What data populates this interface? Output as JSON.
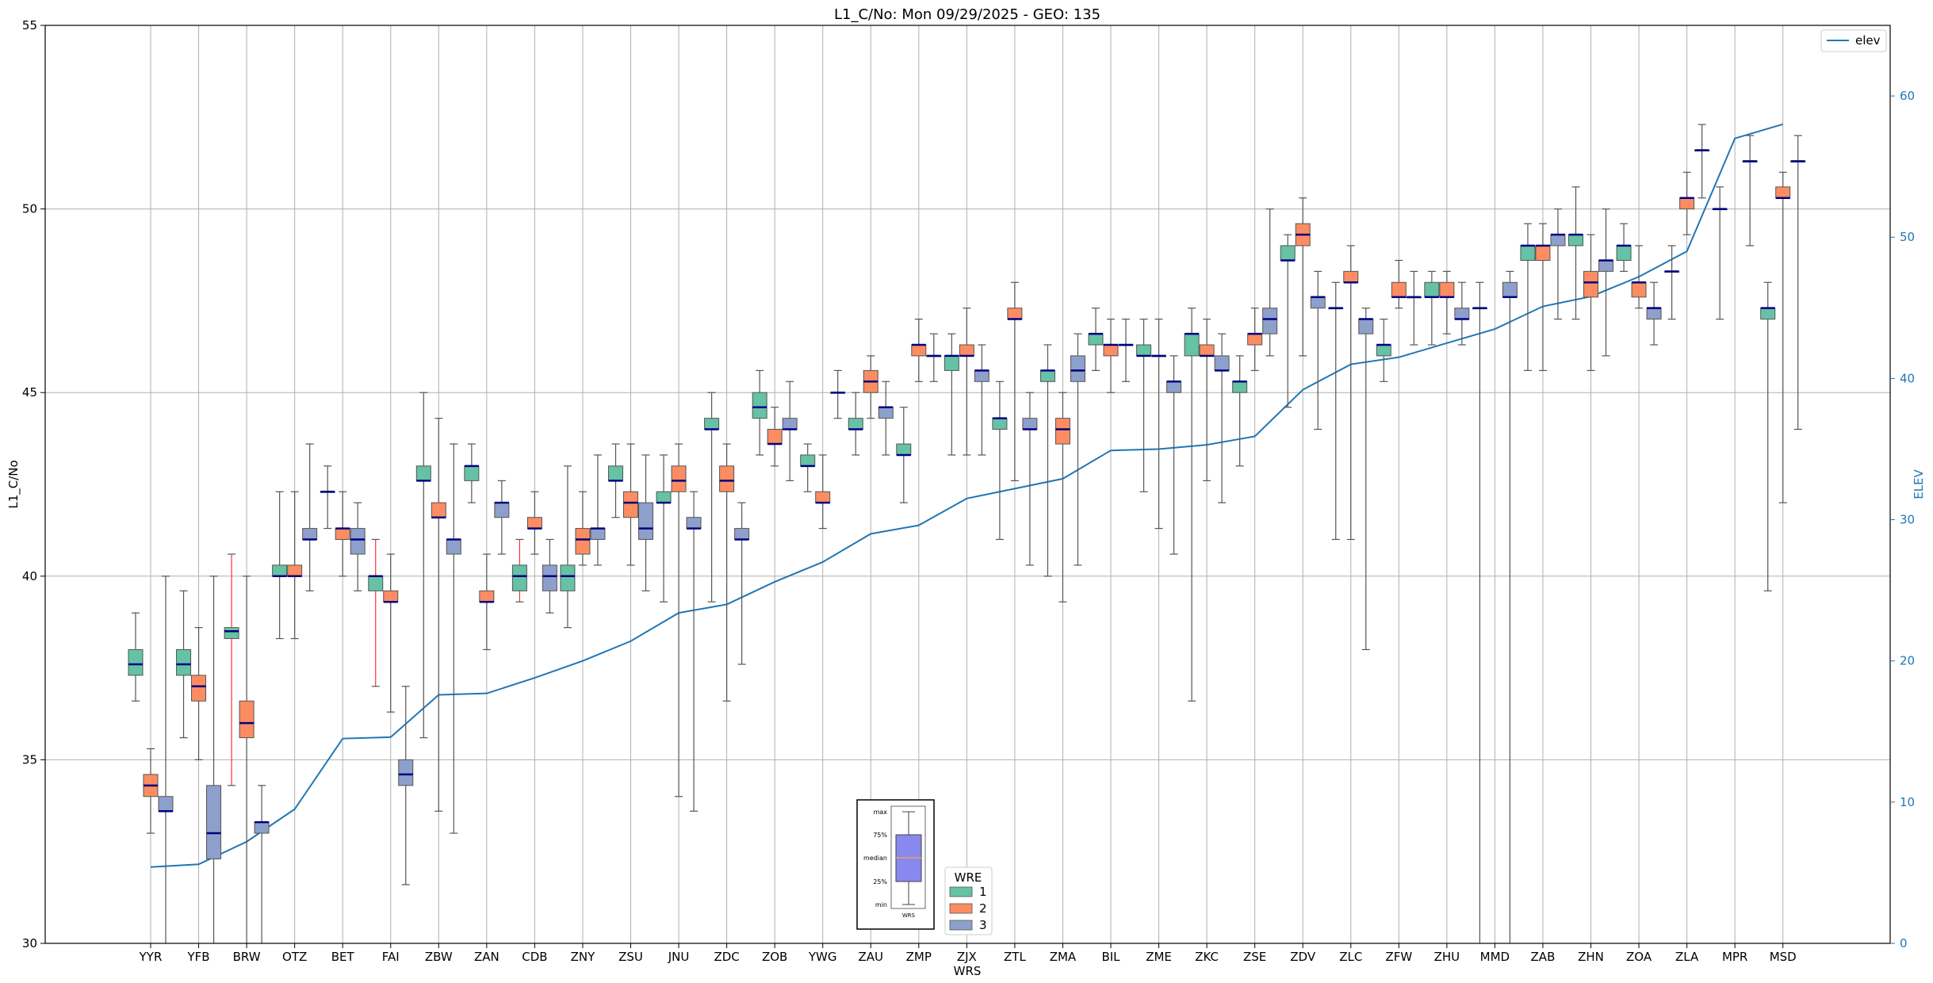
{
  "chart_data": {
    "type": "box",
    "title": "L1_C/No: Mon 09/29/2025 - GEO: 135",
    "xlabel": "WRS",
    "ylabel": "L1_C/No",
    "ylabel_right": "ELEV",
    "ylim": [
      30,
      55
    ],
    "ylim_right": [
      0,
      65
    ],
    "yticks": [
      30,
      35,
      40,
      45,
      50,
      55
    ],
    "yticks_right": [
      0,
      10,
      20,
      30,
      40,
      50,
      60
    ],
    "grid": true,
    "categories": [
      "YYR",
      "YFB",
      "BRW",
      "OTZ",
      "BET",
      "FAI",
      "ZBW",
      "ZAN",
      "CDB",
      "ZNY",
      "ZSU",
      "JNU",
      "ZDC",
      "ZOB",
      "YWG",
      "ZAU",
      "ZMP",
      "ZJX",
      "ZTL",
      "ZMA",
      "BIL",
      "ZME",
      "ZKC",
      "ZSE",
      "ZDV",
      "ZLC",
      "ZFW",
      "ZHU",
      "MMD",
      "ZAB",
      "ZHN",
      "ZOA",
      "ZLA",
      "MPR",
      "MSD"
    ],
    "wre_legend": {
      "title": "WRE",
      "entries": [
        "1",
        "2",
        "3"
      ],
      "colors": [
        "#66c2a5",
        "#fc8d62",
        "#8da0cb"
      ],
      "placement": "bottom-center"
    },
    "series_legend": {
      "entries": [
        "elev"
      ],
      "placement": "top-right"
    },
    "legend_example": {
      "labels": [
        "max",
        "75%",
        "median",
        "25%",
        "min"
      ],
      "xlabel": "WRS"
    },
    "boxes": [
      {
        "station": "YYR",
        "wre": 1,
        "min": 36.6,
        "q1": 37.3,
        "median": 37.6,
        "q3": 38.0,
        "max": 39.0
      },
      {
        "station": "YYR",
        "wre": 2,
        "min": 33.0,
        "q1": 34.0,
        "median": 34.3,
        "q3": 34.6,
        "max": 35.3
      },
      {
        "station": "YYR",
        "wre": 3,
        "min": 30.0,
        "q1": 33.6,
        "median": 33.6,
        "q3": 34.0,
        "max": 40.0
      },
      {
        "station": "YFB",
        "wre": 1,
        "min": 35.6,
        "q1": 37.3,
        "median": 37.6,
        "q3": 38.0,
        "max": 39.6
      },
      {
        "station": "YFB",
        "wre": 2,
        "min": 35.0,
        "q1": 36.6,
        "median": 37.0,
        "q3": 37.3,
        "max": 38.6
      },
      {
        "station": "YFB",
        "wre": 3,
        "min": 30.0,
        "q1": 32.3,
        "median": 33.0,
        "q3": 34.3,
        "max": 40.0
      },
      {
        "station": "BRW",
        "wre": 1,
        "min": 34.3,
        "q1": 38.3,
        "median": 38.5,
        "q3": 38.6,
        "max": 40.6,
        "highlight": true
      },
      {
        "station": "BRW",
        "wre": 2,
        "min": 30.0,
        "q1": 35.6,
        "median": 36.0,
        "q3": 36.6,
        "max": 40.0
      },
      {
        "station": "BRW",
        "wre": 3,
        "min": 30.0,
        "q1": 33.0,
        "median": 33.3,
        "q3": 33.3,
        "max": 34.3
      },
      {
        "station": "OTZ",
        "wre": 1,
        "min": 38.3,
        "q1": 40.0,
        "median": 40.0,
        "q3": 40.3,
        "max": 42.3
      },
      {
        "station": "OTZ",
        "wre": 2,
        "min": 38.3,
        "q1": 40.0,
        "median": 40.0,
        "q3": 40.3,
        "max": 42.3
      },
      {
        "station": "OTZ",
        "wre": 3,
        "min": 39.6,
        "q1": 41.0,
        "median": 41.0,
        "q3": 41.3,
        "max": 43.6
      },
      {
        "station": "BET",
        "wre": 1,
        "min": 41.3,
        "q1": 42.3,
        "median": 42.3,
        "q3": 42.3,
        "max": 43.0
      },
      {
        "station": "BET",
        "wre": 2,
        "min": 40.0,
        "q1": 41.0,
        "median": 41.3,
        "q3": 41.3,
        "max": 42.3
      },
      {
        "station": "BET",
        "wre": 3,
        "min": 39.6,
        "q1": 40.6,
        "median": 41.0,
        "q3": 41.3,
        "max": 42.0
      },
      {
        "station": "FAI",
        "wre": 1,
        "min": 37.0,
        "q1": 39.6,
        "median": 40.0,
        "q3": 40.0,
        "max": 41.0,
        "highlight": true
      },
      {
        "station": "FAI",
        "wre": 2,
        "min": 36.3,
        "q1": 39.3,
        "median": 39.3,
        "q3": 39.6,
        "max": 40.6
      },
      {
        "station": "FAI",
        "wre": 3,
        "min": 31.6,
        "q1": 34.3,
        "median": 34.6,
        "q3": 35.0,
        "max": 37.0
      },
      {
        "station": "ZBW",
        "wre": 1,
        "min": 35.6,
        "q1": 42.6,
        "median": 42.6,
        "q3": 43.0,
        "max": 45.0
      },
      {
        "station": "ZBW",
        "wre": 2,
        "min": 33.6,
        "q1": 41.6,
        "median": 41.6,
        "q3": 42.0,
        "max": 44.3
      },
      {
        "station": "ZBW",
        "wre": 3,
        "min": 33.0,
        "q1": 40.6,
        "median": 41.0,
        "q3": 41.0,
        "max": 43.6
      },
      {
        "station": "ZAN",
        "wre": 1,
        "min": 42.0,
        "q1": 42.6,
        "median": 43.0,
        "q3": 43.0,
        "max": 43.6
      },
      {
        "station": "ZAN",
        "wre": 2,
        "min": 38.0,
        "q1": 39.3,
        "median": 39.3,
        "q3": 39.6,
        "max": 40.6
      },
      {
        "station": "ZAN",
        "wre": 3,
        "min": 40.6,
        "q1": 41.6,
        "median": 42.0,
        "q3": 42.0,
        "max": 42.6
      },
      {
        "station": "CDB",
        "wre": 1,
        "min": 39.3,
        "q1": 39.6,
        "median": 40.0,
        "q3": 40.3,
        "max": 41.0,
        "highlight": true
      },
      {
        "station": "CDB",
        "wre": 2,
        "min": 40.6,
        "q1": 41.3,
        "median": 41.3,
        "q3": 41.6,
        "max": 42.3
      },
      {
        "station": "CDB",
        "wre": 3,
        "min": 39.0,
        "q1": 39.6,
        "median": 40.0,
        "q3": 40.3,
        "max": 41.0
      },
      {
        "station": "ZNY",
        "wre": 1,
        "min": 38.6,
        "q1": 39.6,
        "median": 40.0,
        "q3": 40.3,
        "max": 43.0
      },
      {
        "station": "ZNY",
        "wre": 2,
        "min": 40.3,
        "q1": 40.6,
        "median": 41.0,
        "q3": 41.3,
        "max": 42.3
      },
      {
        "station": "ZNY",
        "wre": 3,
        "min": 40.3,
        "q1": 41.0,
        "median": 41.3,
        "q3": 41.3,
        "max": 43.3
      },
      {
        "station": "ZSU",
        "wre": 1,
        "min": 41.6,
        "q1": 42.6,
        "median": 42.6,
        "q3": 43.0,
        "max": 43.6
      },
      {
        "station": "ZSU",
        "wre": 2,
        "min": 40.3,
        "q1": 41.6,
        "median": 42.0,
        "q3": 42.3,
        "max": 43.6
      },
      {
        "station": "ZSU",
        "wre": 3,
        "min": 39.6,
        "q1": 41.0,
        "median": 41.3,
        "q3": 42.0,
        "max": 43.3
      },
      {
        "station": "JNU",
        "wre": 1,
        "min": 39.3,
        "q1": 42.0,
        "median": 42.0,
        "q3": 42.3,
        "max": 43.3
      },
      {
        "station": "JNU",
        "wre": 2,
        "min": 34.0,
        "q1": 42.3,
        "median": 42.6,
        "q3": 43.0,
        "max": 43.6
      },
      {
        "station": "JNU",
        "wre": 3,
        "min": 33.6,
        "q1": 41.3,
        "median": 41.3,
        "q3": 41.6,
        "max": 42.3
      },
      {
        "station": "ZDC",
        "wre": 1,
        "min": 39.3,
        "q1": 44.0,
        "median": 44.0,
        "q3": 44.3,
        "max": 45.0
      },
      {
        "station": "ZDC",
        "wre": 2,
        "min": 36.6,
        "q1": 42.3,
        "median": 42.6,
        "q3": 43.0,
        "max": 43.6
      },
      {
        "station": "ZDC",
        "wre": 3,
        "min": 37.6,
        "q1": 41.0,
        "median": 41.0,
        "q3": 41.3,
        "max": 42.0
      },
      {
        "station": "ZOB",
        "wre": 1,
        "min": 43.3,
        "q1": 44.3,
        "median": 44.6,
        "q3": 45.0,
        "max": 45.6
      },
      {
        "station": "ZOB",
        "wre": 2,
        "min": 43.0,
        "q1": 43.6,
        "median": 43.6,
        "q3": 44.0,
        "max": 44.6
      },
      {
        "station": "ZOB",
        "wre": 3,
        "min": 42.6,
        "q1": 44.0,
        "median": 44.0,
        "q3": 44.3,
        "max": 45.3
      },
      {
        "station": "YWG",
        "wre": 1,
        "min": 42.3,
        "q1": 43.0,
        "median": 43.0,
        "q3": 43.3,
        "max": 43.6
      },
      {
        "station": "YWG",
        "wre": 2,
        "min": 41.3,
        "q1": 42.0,
        "median": 42.0,
        "q3": 42.3,
        "max": 43.3
      },
      {
        "station": "YWG",
        "wre": 3,
        "min": 44.3,
        "q1": 45.0,
        "median": 45.0,
        "q3": 45.0,
        "max": 45.6
      },
      {
        "station": "ZAU",
        "wre": 1,
        "min": 43.3,
        "q1": 44.0,
        "median": 44.0,
        "q3": 44.3,
        "max": 45.0
      },
      {
        "station": "ZAU",
        "wre": 2,
        "min": 44.3,
        "q1": 45.0,
        "median": 45.3,
        "q3": 45.6,
        "max": 46.0
      },
      {
        "station": "ZAU",
        "wre": 3,
        "min": 43.3,
        "q1": 44.3,
        "median": 44.6,
        "q3": 44.6,
        "max": 45.3
      },
      {
        "station": "ZMP",
        "wre": 1,
        "min": 42.0,
        "q1": 43.3,
        "median": 43.3,
        "q3": 43.6,
        "max": 44.6
      },
      {
        "station": "ZMP",
        "wre": 2,
        "min": 45.3,
        "q1": 46.0,
        "median": 46.3,
        "q3": 46.3,
        "max": 47.0
      },
      {
        "station": "ZMP",
        "wre": 3,
        "min": 45.3,
        "q1": 46.0,
        "median": 46.0,
        "q3": 46.0,
        "max": 46.6
      },
      {
        "station": "ZJX",
        "wre": 1,
        "min": 43.3,
        "q1": 45.6,
        "median": 46.0,
        "q3": 46.0,
        "max": 46.6
      },
      {
        "station": "ZJX",
        "wre": 2,
        "min": 43.3,
        "q1": 46.0,
        "median": 46.0,
        "q3": 46.3,
        "max": 47.3
      },
      {
        "station": "ZJX",
        "wre": 3,
        "min": 43.3,
        "q1": 45.3,
        "median": 45.6,
        "q3": 45.6,
        "max": 46.3
      },
      {
        "station": "ZTL",
        "wre": 1,
        "min": 41.0,
        "q1": 44.0,
        "median": 44.3,
        "q3": 44.3,
        "max": 45.3
      },
      {
        "station": "ZTL",
        "wre": 2,
        "min": 42.6,
        "q1": 47.0,
        "median": 47.0,
        "q3": 47.3,
        "max": 48.0
      },
      {
        "station": "ZTL",
        "wre": 3,
        "min": 40.3,
        "q1": 44.0,
        "median": 44.0,
        "q3": 44.3,
        "max": 45.0
      },
      {
        "station": "ZMA",
        "wre": 1,
        "min": 40.0,
        "q1": 45.3,
        "median": 45.6,
        "q3": 45.6,
        "max": 46.3
      },
      {
        "station": "ZMA",
        "wre": 2,
        "min": 39.3,
        "q1": 43.6,
        "median": 44.0,
        "q3": 44.3,
        "max": 45.0
      },
      {
        "station": "ZMA",
        "wre": 3,
        "min": 40.3,
        "q1": 45.3,
        "median": 45.6,
        "q3": 46.0,
        "max": 46.6
      },
      {
        "station": "BIL",
        "wre": 1,
        "min": 45.6,
        "q1": 46.3,
        "median": 46.6,
        "q3": 46.6,
        "max": 47.3
      },
      {
        "station": "BIL",
        "wre": 2,
        "min": 45.0,
        "q1": 46.0,
        "median": 46.3,
        "q3": 46.3,
        "max": 47.0
      },
      {
        "station": "BIL",
        "wre": 3,
        "min": 45.3,
        "q1": 46.3,
        "median": 46.3,
        "q3": 46.3,
        "max": 47.0
      },
      {
        "station": "ZME",
        "wre": 1,
        "min": 42.3,
        "q1": 46.0,
        "median": 46.0,
        "q3": 46.3,
        "max": 47.0
      },
      {
        "station": "ZME",
        "wre": 2,
        "min": 41.3,
        "q1": 46.0,
        "median": 46.0,
        "q3": 46.0,
        "max": 47.0
      },
      {
        "station": "ZME",
        "wre": 3,
        "min": 40.6,
        "q1": 45.0,
        "median": 45.3,
        "q3": 45.3,
        "max": 46.0
      },
      {
        "station": "ZKC",
        "wre": 1,
        "min": 36.6,
        "q1": 46.0,
        "median": 46.6,
        "q3": 46.6,
        "max": 47.3
      },
      {
        "station": "ZKC",
        "wre": 2,
        "min": 42.6,
        "q1": 46.0,
        "median": 46.0,
        "q3": 46.3,
        "max": 47.0
      },
      {
        "station": "ZKC",
        "wre": 3,
        "min": 42.0,
        "q1": 45.6,
        "median": 45.6,
        "q3": 46.0,
        "max": 46.6
      },
      {
        "station": "ZSE",
        "wre": 1,
        "min": 43.0,
        "q1": 45.0,
        "median": 45.3,
        "q3": 45.3,
        "max": 46.0
      },
      {
        "station": "ZSE",
        "wre": 2,
        "min": 45.6,
        "q1": 46.3,
        "median": 46.6,
        "q3": 46.6,
        "max": 47.3
      },
      {
        "station": "ZSE",
        "wre": 3,
        "min": 46.0,
        "q1": 46.6,
        "median": 47.0,
        "q3": 47.3,
        "max": 50.0
      },
      {
        "station": "ZDV",
        "wre": 1,
        "min": 44.6,
        "q1": 48.6,
        "median": 48.6,
        "q3": 49.0,
        "max": 49.3
      },
      {
        "station": "ZDV",
        "wre": 2,
        "min": 46.0,
        "q1": 49.0,
        "median": 49.3,
        "q3": 49.6,
        "max": 50.3
      },
      {
        "station": "ZDV",
        "wre": 3,
        "min": 44.0,
        "q1": 47.3,
        "median": 47.6,
        "q3": 47.6,
        "max": 48.3
      },
      {
        "station": "ZLC",
        "wre": 1,
        "min": 41.0,
        "q1": 47.3,
        "median": 47.3,
        "q3": 47.3,
        "max": 48.0
      },
      {
        "station": "ZLC",
        "wre": 2,
        "min": 41.0,
        "q1": 48.0,
        "median": 48.0,
        "q3": 48.3,
        "max": 49.0
      },
      {
        "station": "ZLC",
        "wre": 3,
        "min": 38.0,
        "q1": 46.6,
        "median": 47.0,
        "q3": 47.0,
        "max": 47.3
      },
      {
        "station": "ZFW",
        "wre": 1,
        "min": 45.3,
        "q1": 46.0,
        "median": 46.3,
        "q3": 46.3,
        "max": 47.0
      },
      {
        "station": "ZFW",
        "wre": 2,
        "min": 47.3,
        "q1": 47.6,
        "median": 47.6,
        "q3": 48.0,
        "max": 48.6
      },
      {
        "station": "ZFW",
        "wre": 3,
        "min": 46.3,
        "q1": 47.6,
        "median": 47.6,
        "q3": 47.6,
        "max": 48.3
      },
      {
        "station": "ZHU",
        "wre": 1,
        "min": 46.3,
        "q1": 47.6,
        "median": 47.6,
        "q3": 48.0,
        "max": 48.3
      },
      {
        "station": "ZHU",
        "wre": 2,
        "min": 46.6,
        "q1": 47.6,
        "median": 47.6,
        "q3": 48.0,
        "max": 48.3
      },
      {
        "station": "ZHU",
        "wre": 3,
        "min": 46.3,
        "q1": 47.0,
        "median": 47.0,
        "q3": 47.3,
        "max": 48.0
      },
      {
        "station": "MMD",
        "wre": 1,
        "min": 30.0,
        "q1": 47.3,
        "median": 47.3,
        "q3": 47.3,
        "max": 48.0
      },
      {
        "station": "MMD",
        "wre": 3,
        "min": 30.0,
        "q1": 47.6,
        "median": 47.6,
        "q3": 48.0,
        "max": 48.3
      },
      {
        "station": "ZAB",
        "wre": 1,
        "min": 45.6,
        "q1": 48.6,
        "median": 49.0,
        "q3": 49.0,
        "max": 49.6
      },
      {
        "station": "ZAB",
        "wre": 2,
        "min": 45.6,
        "q1": 48.6,
        "median": 49.0,
        "q3": 49.0,
        "max": 49.6
      },
      {
        "station": "ZAB",
        "wre": 3,
        "min": 47.0,
        "q1": 49.0,
        "median": 49.3,
        "q3": 49.3,
        "max": 50.0
      },
      {
        "station": "ZHN",
        "wre": 1,
        "min": 47.0,
        "q1": 49.0,
        "median": 49.3,
        "q3": 49.3,
        "max": 50.6
      },
      {
        "station": "ZHN",
        "wre": 2,
        "min": 45.6,
        "q1": 47.6,
        "median": 48.0,
        "q3": 48.3,
        "max": 49.3
      },
      {
        "station": "ZHN",
        "wre": 3,
        "min": 46.0,
        "q1": 48.3,
        "median": 48.6,
        "q3": 48.6,
        "max": 50.0
      },
      {
        "station": "ZOA",
        "wre": 1,
        "min": 48.3,
        "q1": 48.6,
        "median": 49.0,
        "q3": 49.0,
        "max": 49.6
      },
      {
        "station": "ZOA",
        "wre": 2,
        "min": 47.3,
        "q1": 47.6,
        "median": 48.0,
        "q3": 48.0,
        "max": 49.0
      },
      {
        "station": "ZOA",
        "wre": 3,
        "min": 46.3,
        "q1": 47.0,
        "median": 47.3,
        "q3": 47.3,
        "max": 48.0
      },
      {
        "station": "ZLA",
        "wre": 1,
        "min": 47.0,
        "q1": 48.3,
        "median": 48.3,
        "q3": 48.3,
        "max": 49.0
      },
      {
        "station": "ZLA",
        "wre": 2,
        "min": 49.3,
        "q1": 50.0,
        "median": 50.3,
        "q3": 50.3,
        "max": 51.0
      },
      {
        "station": "ZLA",
        "wre": 3,
        "min": 50.3,
        "q1": 51.6,
        "median": 51.6,
        "q3": 51.6,
        "max": 52.3
      },
      {
        "station": "MPR",
        "wre": 1,
        "min": 47.0,
        "q1": 50.0,
        "median": 50.0,
        "q3": 50.0,
        "max": 50.6
      },
      {
        "station": "MPR",
        "wre": 3,
        "min": 49.0,
        "q1": 51.3,
        "median": 51.3,
        "q3": 51.3,
        "max": 52.0
      },
      {
        "station": "MSD",
        "wre": 1,
        "min": 39.6,
        "q1": 47.0,
        "median": 47.3,
        "q3": 47.3,
        "max": 48.0
      },
      {
        "station": "MSD",
        "wre": 2,
        "min": 42.0,
        "q1": 50.3,
        "median": 50.3,
        "q3": 50.6,
        "max": 51.0
      },
      {
        "station": "MSD",
        "wre": 3,
        "min": 44.0,
        "q1": 51.3,
        "median": 51.3,
        "q3": 51.3,
        "max": 52.0
      }
    ],
    "series": [
      {
        "name": "elev",
        "axis": "right",
        "color": "#1f77b4",
        "values": [
          5.4,
          5.6,
          7.2,
          9.5,
          14.5,
          14.6,
          17.6,
          17.7,
          18.8,
          20.0,
          21.4,
          23.4,
          24.0,
          25.6,
          27.0,
          29.0,
          29.6,
          31.5,
          32.2,
          32.9,
          34.9,
          35.0,
          35.3,
          35.9,
          39.2,
          41.0,
          41.5,
          42.5,
          43.5,
          45.1,
          45.8,
          47.2,
          49.0,
          57.0,
          58.0
        ]
      }
    ]
  }
}
